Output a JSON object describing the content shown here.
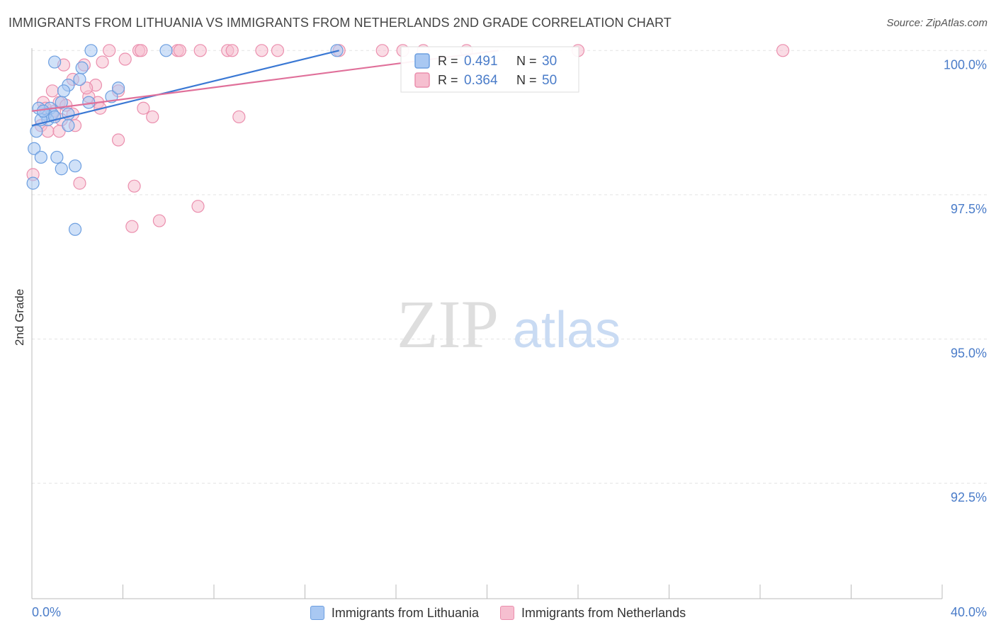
{
  "title": "IMMIGRANTS FROM LITHUANIA VS IMMIGRANTS FROM NETHERLANDS 2ND GRADE CORRELATION CHART",
  "source": "Source: ZipAtlas.com",
  "watermark": {
    "zip": "ZIP",
    "atlas": "atlas"
  },
  "colors": {
    "blue_fill": "#a9c8f2",
    "blue_stroke": "#6d9fe0",
    "blue_line": "#3a78d4",
    "pink_fill": "#f6bfd0",
    "pink_stroke": "#eb8fae",
    "pink_line": "#e0709a",
    "axis_text": "#4a7cc9",
    "grid": "#e3e3e3"
  },
  "chart_data": {
    "type": "scatter",
    "title": "IMMIGRANTS FROM LITHUANIA VS IMMIGRANTS FROM NETHERLANDS 2ND GRADE CORRELATION CHART",
    "xlabel": "",
    "ylabel": "2nd Grade",
    "xlim": [
      0,
      40
    ],
    "ylim": [
      90.5,
      100.2
    ],
    "x_tick_labels": [
      "0.0%",
      "40.0%"
    ],
    "y_ticks": [
      100.0,
      97.5,
      95.0,
      92.5
    ],
    "y_tick_labels": [
      "100.0%",
      "97.5%",
      "95.0%",
      "92.5%"
    ],
    "grid": true,
    "legend_position": "top-center",
    "series": [
      {
        "name": "Immigrants from Lithuania",
        "R": "0.491",
        "N": "30",
        "trend": [
          [
            0,
            98.7
          ],
          [
            13.5,
            100.0
          ]
        ],
        "points": [
          [
            2.6,
            100.0
          ],
          [
            5.9,
            100.0
          ],
          [
            13.4,
            100.0
          ],
          [
            1.0,
            99.8
          ],
          [
            2.2,
            99.7
          ],
          [
            1.6,
            99.4
          ],
          [
            3.5,
            99.2
          ],
          [
            1.4,
            99.3
          ],
          [
            2.5,
            99.1
          ],
          [
            3.8,
            99.35
          ],
          [
            1.3,
            99.1
          ],
          [
            0.8,
            99.0
          ],
          [
            0.9,
            98.9
          ],
          [
            0.6,
            98.9
          ],
          [
            1.6,
            98.9
          ],
          [
            0.7,
            98.8
          ],
          [
            0.4,
            98.8
          ],
          [
            1.6,
            98.7
          ],
          [
            0.2,
            98.6
          ],
          [
            0.1,
            98.3
          ],
          [
            0.4,
            98.15
          ],
          [
            1.1,
            98.15
          ],
          [
            1.3,
            97.95
          ],
          [
            1.9,
            98.0
          ],
          [
            0.05,
            97.7
          ],
          [
            1.9,
            96.9
          ],
          [
            0.3,
            99.0
          ],
          [
            2.1,
            99.5
          ],
          [
            1.0,
            98.85
          ],
          [
            0.5,
            98.95
          ]
        ]
      },
      {
        "name": "Immigrants from Netherlands",
        "R": "0.364",
        "N": "50",
        "trend": [
          [
            0,
            98.95
          ],
          [
            20.5,
            100.0
          ]
        ],
        "points": [
          [
            3.4,
            100.0
          ],
          [
            4.7,
            100.0
          ],
          [
            4.8,
            100.0
          ],
          [
            6.4,
            100.0
          ],
          [
            6.5,
            100.0
          ],
          [
            7.4,
            100.0
          ],
          [
            8.6,
            100.0
          ],
          [
            8.8,
            100.0
          ],
          [
            10.1,
            100.0
          ],
          [
            10.8,
            100.0
          ],
          [
            13.5,
            100.0
          ],
          [
            15.4,
            100.0
          ],
          [
            16.3,
            100.0
          ],
          [
            17.2,
            100.0
          ],
          [
            19.1,
            100.0
          ],
          [
            24.0,
            100.0
          ],
          [
            33.0,
            100.0
          ],
          [
            3.1,
            99.8
          ],
          [
            4.1,
            99.85
          ],
          [
            1.4,
            99.75
          ],
          [
            2.3,
            99.75
          ],
          [
            1.8,
            99.5
          ],
          [
            2.8,
            99.4
          ],
          [
            0.9,
            99.3
          ],
          [
            2.5,
            99.2
          ],
          [
            0.5,
            99.1
          ],
          [
            1.2,
            99.1
          ],
          [
            2.9,
            99.1
          ],
          [
            3.8,
            99.3
          ],
          [
            4.9,
            99.0
          ],
          [
            0.6,
            99.0
          ],
          [
            1.0,
            98.95
          ],
          [
            1.8,
            98.9
          ],
          [
            5.3,
            98.85
          ],
          [
            9.1,
            98.85
          ],
          [
            1.3,
            98.8
          ],
          [
            1.9,
            98.7
          ],
          [
            0.4,
            98.7
          ],
          [
            0.7,
            98.6
          ],
          [
            1.2,
            98.6
          ],
          [
            3.8,
            98.45
          ],
          [
            2.1,
            97.7
          ],
          [
            4.5,
            97.65
          ],
          [
            0.05,
            97.85
          ],
          [
            7.3,
            97.3
          ],
          [
            5.6,
            97.05
          ],
          [
            4.4,
            96.95
          ],
          [
            3.0,
            99.0
          ],
          [
            1.5,
            99.05
          ],
          [
            2.4,
            99.35
          ]
        ]
      }
    ]
  }
}
